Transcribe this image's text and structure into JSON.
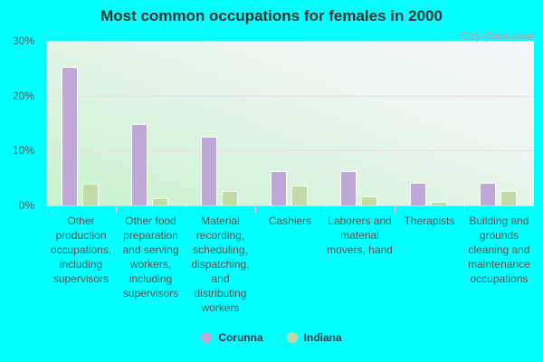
{
  "title": "Most common occupations for females in 2000",
  "watermark": "City-Data.com",
  "legend": [
    {
      "label": "Corunna",
      "color": "#bfa8d8"
    },
    {
      "label": "Indiana",
      "color": "#c4d9a8"
    }
  ],
  "y_ticks": [
    "0%",
    "10%",
    "20%",
    "30%"
  ],
  "chart_data": {
    "type": "bar",
    "title": "Most common occupations for females in 2000",
    "xlabel": "",
    "ylabel": "",
    "ylim": [
      0,
      30
    ],
    "grid": true,
    "legend_position": "bottom",
    "categories": [
      "Other production occupations, including supervisors",
      "Other food preparation and serving workers, including supervisors",
      "Material recording, scheduling, dispatching, and distributing workers",
      "Cashiers",
      "Laborers and material movers, hand",
      "Therapists",
      "Building and grounds cleaning and maintenance occupations"
    ],
    "series": [
      {
        "name": "Corunna",
        "values": [
          25.3,
          14.8,
          12.6,
          6.2,
          6.2,
          4.2,
          4.2
        ]
      },
      {
        "name": "Indiana",
        "values": [
          3.9,
          1.3,
          2.6,
          3.6,
          1.6,
          0.6,
          2.6
        ]
      }
    ]
  }
}
